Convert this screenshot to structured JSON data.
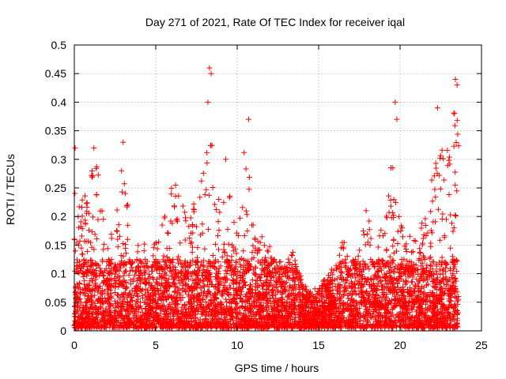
{
  "chart_data": {
    "type": "scatter",
    "title": "Day 271 of 2021, Rate Of TEC Index for receiver iqal",
    "xlabel": "GPS time / hours",
    "ylabel": "ROTI / TECUs",
    "xlim": [
      0,
      25
    ],
    "ylim": [
      0,
      0.5
    ],
    "xticks": [
      0,
      5,
      10,
      15,
      20,
      25
    ],
    "yticks": [
      0,
      0.05,
      0.1,
      0.15,
      0.2,
      0.25,
      0.3,
      0.35,
      0.4,
      0.45,
      0.5
    ],
    "xtick_labels": [
      "0",
      "5",
      "10",
      "15",
      "20",
      "25"
    ],
    "ytick_labels": [
      "0",
      "0.05",
      "0.1",
      "0.15",
      "0.2",
      "0.25",
      "0.3",
      "0.35",
      "0.4",
      "0.45",
      "0.5"
    ],
    "grid": true,
    "marker": "plus",
    "color": "#ff0000",
    "x_extent": [
      0,
      23.6
    ],
    "profile": [
      [
        0.0,
        0.3
      ],
      [
        0.3,
        0.21
      ],
      [
        0.7,
        0.23
      ],
      [
        1.0,
        0.26
      ],
      [
        1.3,
        0.31
      ],
      [
        1.6,
        0.24
      ],
      [
        2.0,
        0.15
      ],
      [
        2.5,
        0.17
      ],
      [
        3.0,
        0.31
      ],
      [
        3.5,
        0.14
      ],
      [
        4.0,
        0.14
      ],
      [
        4.5,
        0.15
      ],
      [
        5.0,
        0.15
      ],
      [
        5.5,
        0.2
      ],
      [
        6.0,
        0.26
      ],
      [
        6.5,
        0.23
      ],
      [
        7.0,
        0.2
      ],
      [
        7.5,
        0.22
      ],
      [
        8.0,
        0.28
      ],
      [
        8.3,
        0.43
      ],
      [
        8.6,
        0.28
      ],
      [
        9.0,
        0.21
      ],
      [
        9.5,
        0.23
      ],
      [
        10.0,
        0.19
      ],
      [
        10.5,
        0.33
      ],
      [
        11.0,
        0.2
      ],
      [
        11.5,
        0.16
      ],
      [
        12.0,
        0.14
      ],
      [
        12.5,
        0.12
      ],
      [
        13.0,
        0.11
      ],
      [
        13.5,
        0.14
      ],
      [
        14.0,
        0.08
      ],
      [
        14.5,
        0.06
      ],
      [
        15.0,
        0.07
      ],
      [
        15.5,
        0.09
      ],
      [
        16.0,
        0.11
      ],
      [
        16.5,
        0.15
      ],
      [
        17.0,
        0.11
      ],
      [
        17.5,
        0.14
      ],
      [
        18.0,
        0.24
      ],
      [
        18.5,
        0.12
      ],
      [
        19.0,
        0.2
      ],
      [
        19.5,
        0.3
      ],
      [
        20.0,
        0.18
      ],
      [
        20.5,
        0.16
      ],
      [
        21.0,
        0.15
      ],
      [
        21.5,
        0.2
      ],
      [
        22.0,
        0.27
      ],
      [
        22.5,
        0.33
      ],
      [
        23.0,
        0.32
      ],
      [
        23.3,
        0.42
      ],
      [
        23.6,
        0.35
      ]
    ],
    "peaks": [
      {
        "x": 0.05,
        "y": 0.32
      },
      {
        "x": 1.2,
        "y": 0.32
      },
      {
        "x": 3.0,
        "y": 0.33
      },
      {
        "x": 8.3,
        "y": 0.46
      },
      {
        "x": 8.4,
        "y": 0.45
      },
      {
        "x": 8.2,
        "y": 0.4
      },
      {
        "x": 10.7,
        "y": 0.37
      },
      {
        "x": 19.7,
        "y": 0.4
      },
      {
        "x": 19.8,
        "y": 0.37
      },
      {
        "x": 22.3,
        "y": 0.39
      },
      {
        "x": 23.4,
        "y": 0.44
      },
      {
        "x": 23.5,
        "y": 0.43
      },
      {
        "x": 23.3,
        "y": 0.38
      },
      {
        "x": 9.3,
        "y": 0.3
      }
    ]
  }
}
